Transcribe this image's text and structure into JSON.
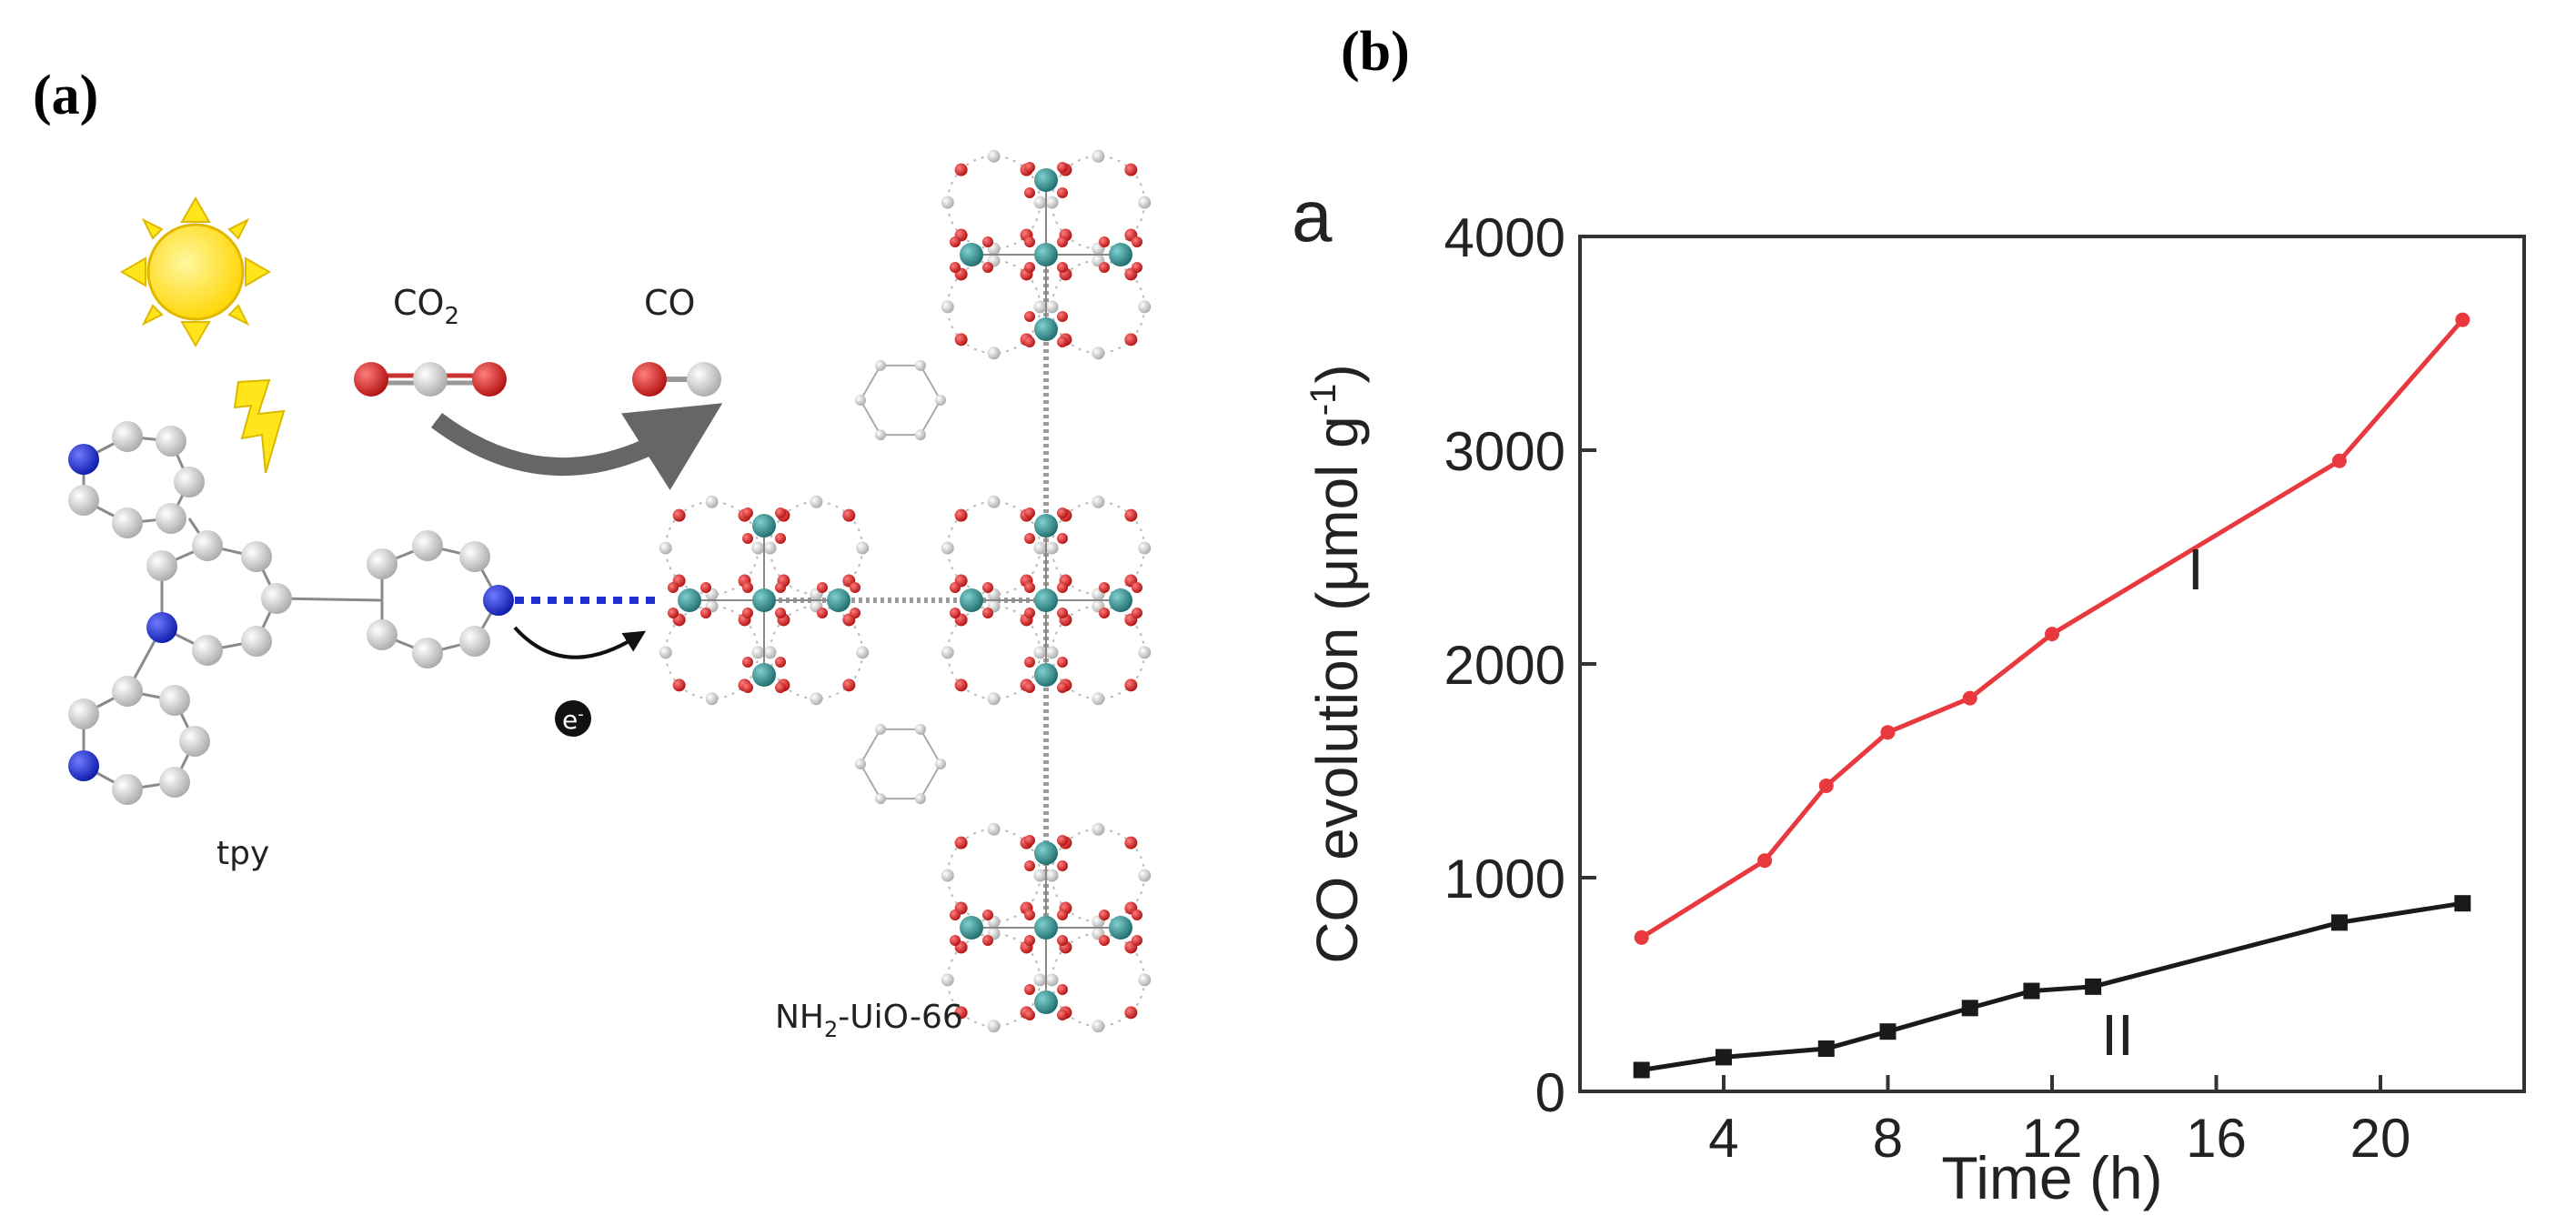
{
  "panels": {
    "a": {
      "label": "(a)",
      "co2_label_main": "CO",
      "co2_label_sub": "2",
      "co_label": "CO",
      "electron_label_main": "e",
      "electron_label_sup": "-",
      "tpy_label": "tpy",
      "mof_label_main": "NH",
      "mof_label_sub": "2",
      "mof_label_rest": "-UiO-66"
    },
    "b": {
      "label": "(b)"
    }
  },
  "colors": {
    "series_I": "#e8393f",
    "series_II": "#1a1a1a",
    "nitrogen": "#1f2fd0",
    "carbon": "#d6d6d6",
    "oxygen": "#d42020",
    "zirconium": "#2f8f8f",
    "sun": "#ffe51a",
    "arrow": "#666666"
  },
  "chart_data": {
    "type": "line",
    "panel_letter": "a",
    "title": "",
    "xlabel": "Time (h)",
    "ylabel": "CO evolution (μmol g",
    "ylabel_sup": "-1",
    "ylabel_close": ")",
    "xlim": [
      0.5,
      23.5
    ],
    "ylim": [
      0,
      4000
    ],
    "xticks": [
      4,
      8,
      12,
      16,
      20
    ],
    "yticks": [
      0,
      1000,
      2000,
      3000,
      4000
    ],
    "series": [
      {
        "name": "I",
        "x": [
          2,
          5,
          6.5,
          8,
          10,
          12,
          19,
          22
        ],
        "y": [
          720,
          1080,
          1430,
          1680,
          1840,
          2140,
          2950,
          3610
        ]
      },
      {
        "name": "II",
        "x": [
          2,
          4,
          6.5,
          8,
          10,
          11.5,
          13,
          19,
          22
        ],
        "y": [
          100,
          160,
          200,
          280,
          390,
          470,
          490,
          790,
          880
        ]
      }
    ]
  }
}
